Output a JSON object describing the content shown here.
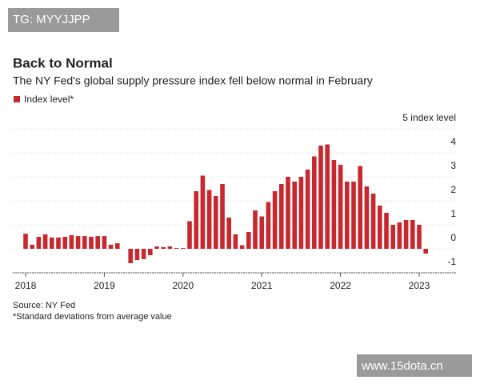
{
  "watermark": "TG: MYYJJPP",
  "footer_watermark": "www.15dota.cn",
  "chart_data": {
    "type": "bar",
    "title": "Back to Normal",
    "subtitle": "The NY Fed's global supply pressure index fell below normal in February",
    "categories": [
      "2018",
      null,
      null,
      null,
      null,
      null,
      null,
      null,
      null,
      null,
      null,
      null,
      "2019",
      null,
      null,
      null,
      null,
      null,
      null,
      null,
      null,
      null,
      null,
      null,
      "2020",
      null,
      null,
      null,
      null,
      null,
      null,
      null,
      null,
      null,
      null,
      null,
      "2021",
      null,
      null,
      null,
      null,
      null,
      null,
      null,
      null,
      null,
      null,
      null,
      "2022",
      null,
      null,
      null,
      null,
      null,
      null,
      null,
      null,
      null,
      null,
      null,
      "2023",
      null
    ],
    "series": [
      {
        "name": "Index level*",
        "color": "#c8282d",
        "values": [
          0.63,
          0.17,
          0.5,
          0.6,
          0.47,
          0.47,
          0.5,
          0.57,
          0.53,
          0.53,
          0.5,
          0.53,
          0.53,
          0.17,
          0.23,
          0.0,
          -0.6,
          -0.47,
          -0.43,
          -0.27,
          0.1,
          0.07,
          0.1,
          0.03,
          0.03,
          1.15,
          2.4,
          3.05,
          2.45,
          2.2,
          2.7,
          1.3,
          0.6,
          0.15,
          0.7,
          1.6,
          1.35,
          1.95,
          2.4,
          2.7,
          3.0,
          2.8,
          3.0,
          3.3,
          3.85,
          4.3,
          4.35,
          3.7,
          3.5,
          2.8,
          2.8,
          3.45,
          2.6,
          2.3,
          1.8,
          1.5,
          1.0,
          1.1,
          1.2,
          1.2,
          1.0,
          -0.2
        ]
      }
    ],
    "ylim": [
      -1,
      5
    ],
    "yticks": [
      -1,
      0,
      1,
      2,
      3,
      4,
      {
        "value": 5,
        "label": "5 index level"
      }
    ],
    "grid": true,
    "source": "Source: NY Fed",
    "note": "*Standard deviations from average value"
  }
}
